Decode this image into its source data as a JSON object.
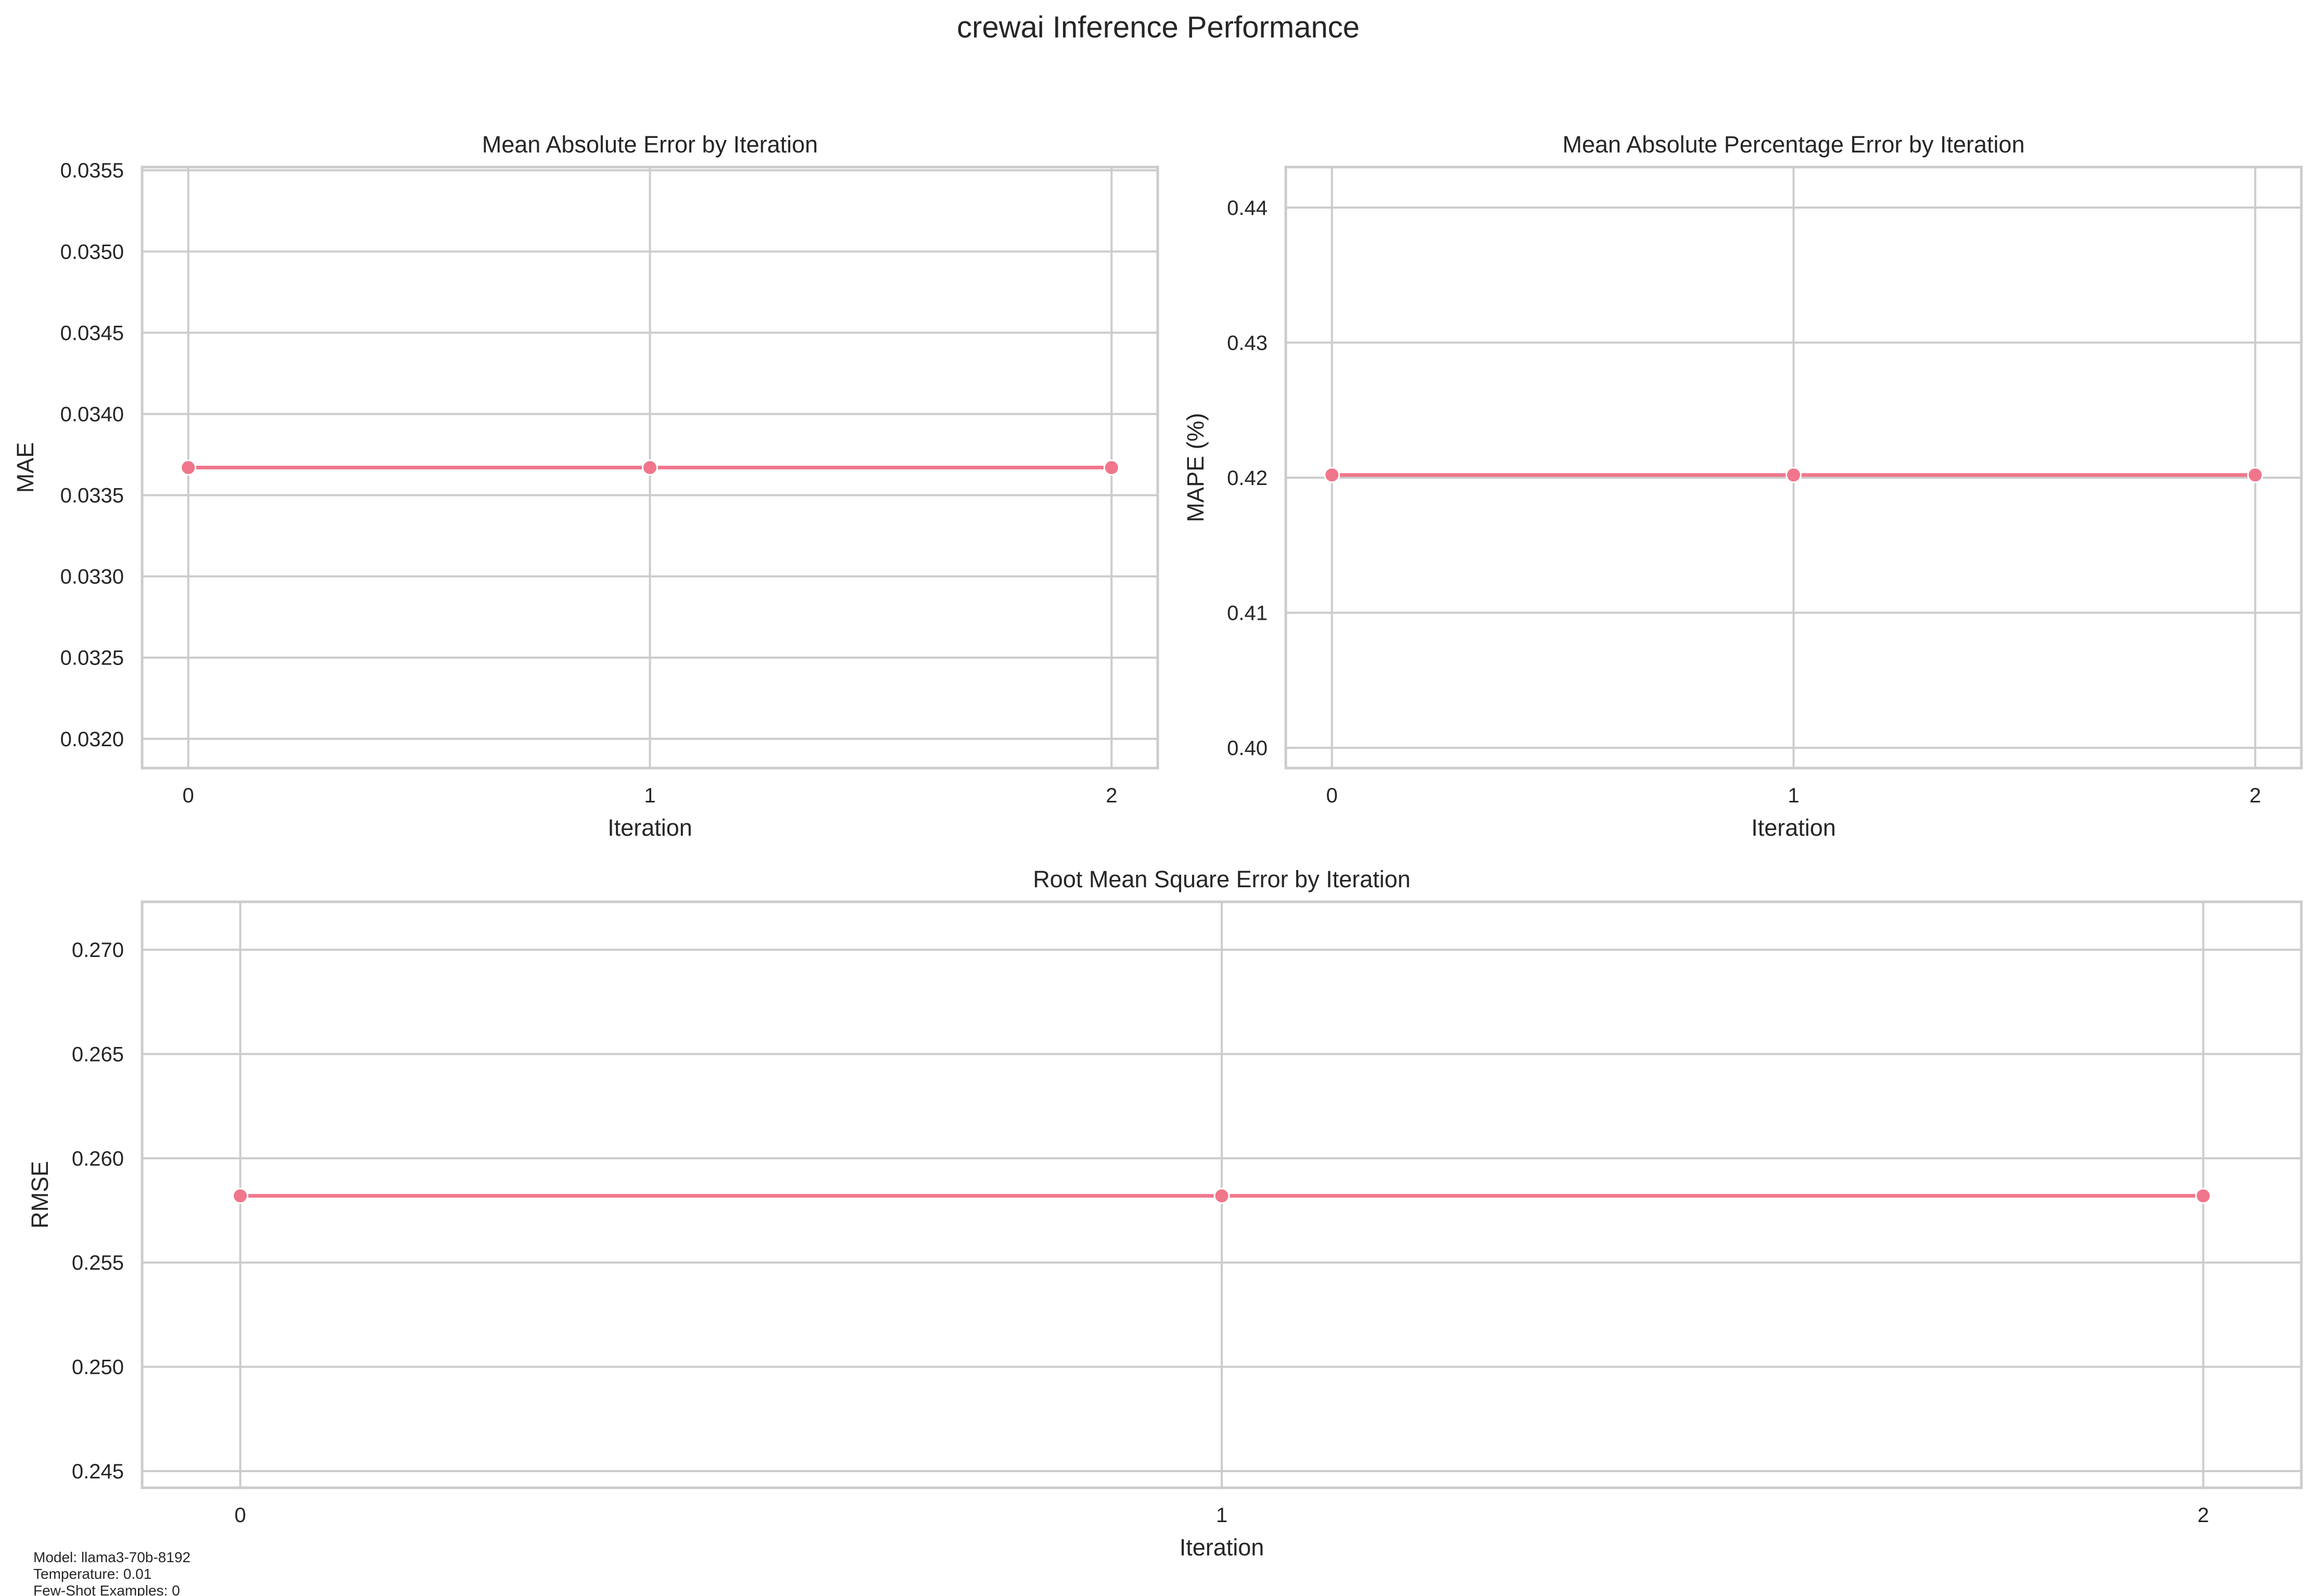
{
  "figure": {
    "title": "crewai Inference Performance",
    "footnote": [
      "Model: llama3-70b-8192",
      "Temperature: 0.01",
      "Few-Shot Examples: 0"
    ]
  },
  "colors": {
    "line": "#f0768b",
    "marker_edge": "#ffffff",
    "grid": "#cccccc",
    "spine": "#cccccc",
    "text": "#262626",
    "background": "#ffffff"
  },
  "chart_data": [
    {
      "type": "line",
      "title": "Mean Absolute Error by Iteration",
      "xlabel": "Iteration",
      "ylabel": "MAE",
      "x": [
        0,
        1,
        2
      ],
      "y": [
        0.03367,
        0.03367,
        0.03367
      ],
      "xlim": [
        -0.1,
        2.1
      ],
      "ylim": [
        0.03182,
        0.03552
      ],
      "xticks": [
        0,
        1,
        2
      ],
      "xtick_labels": [
        "0",
        "1",
        "2"
      ],
      "yticks": [
        0.032,
        0.0325,
        0.033,
        0.0335,
        0.034,
        0.0345,
        0.035,
        0.0355
      ],
      "ytick_labels": [
        "0.0320",
        "0.0325",
        "0.0330",
        "0.0335",
        "0.0340",
        "0.0345",
        "0.0350",
        "0.0355"
      ],
      "grid": true,
      "marker": "circle"
    },
    {
      "type": "line",
      "title": "Mean Absolute Percentage Error by Iteration",
      "xlabel": "Iteration",
      "ylabel": "MAPE (%)",
      "x": [
        0,
        1,
        2
      ],
      "y": [
        0.4202,
        0.4202,
        0.4202
      ],
      "xlim": [
        -0.1,
        2.1
      ],
      "ylim": [
        0.3985,
        0.443
      ],
      "xticks": [
        0,
        1,
        2
      ],
      "xtick_labels": [
        "0",
        "1",
        "2"
      ],
      "yticks": [
        0.4,
        0.41,
        0.42,
        0.43,
        0.44
      ],
      "ytick_labels": [
        "0.40",
        "0.41",
        "0.42",
        "0.43",
        "0.44"
      ],
      "grid": true,
      "marker": "circle"
    },
    {
      "type": "line",
      "title": "Root Mean Square Error by Iteration",
      "xlabel": "Iteration",
      "ylabel": "RMSE",
      "x": [
        0,
        1,
        2
      ],
      "y": [
        0.2582,
        0.2582,
        0.2582
      ],
      "xlim": [
        -0.1,
        2.1
      ],
      "ylim": [
        0.2442,
        0.2723
      ],
      "xticks": [
        0,
        1,
        2
      ],
      "xtick_labels": [
        "0",
        "1",
        "2"
      ],
      "yticks": [
        0.245,
        0.25,
        0.255,
        0.26,
        0.265,
        0.27
      ],
      "ytick_labels": [
        "0.245",
        "0.250",
        "0.255",
        "0.260",
        "0.265",
        "0.270"
      ],
      "grid": true,
      "marker": "circle"
    }
  ]
}
